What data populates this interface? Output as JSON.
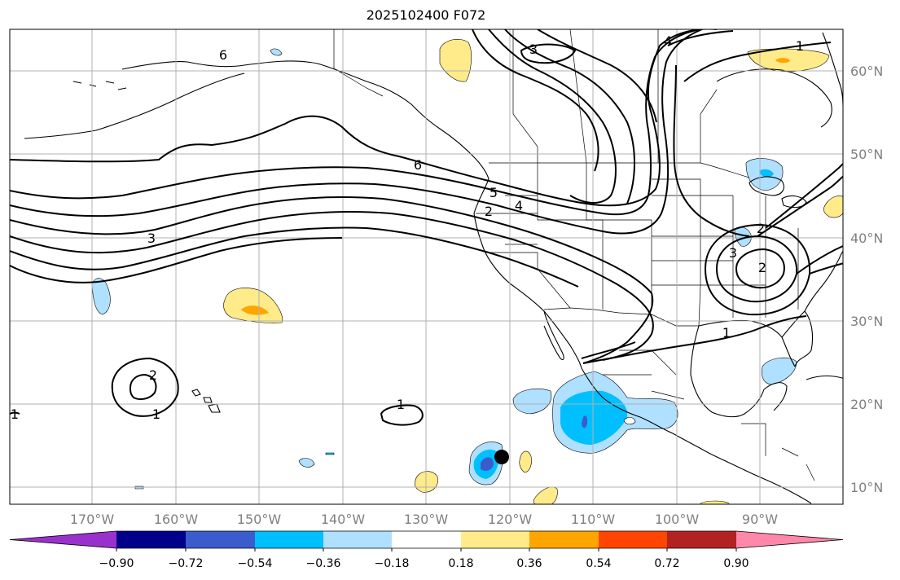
{
  "title": "2025102400 F072",
  "lon_labels": [
    "170°W",
    "160°W",
    "150°W",
    "140°W",
    "130°W",
    "120°W",
    "110°W",
    "100°W",
    "90°W"
  ],
  "lat_labels": [
    "60°N",
    "50°N",
    "40°N",
    "30°N",
    "20°N",
    "10°N"
  ],
  "contour_labels": [
    "6",
    "6",
    "5",
    "4",
    "4",
    "3",
    "3",
    "3",
    "2",
    "2",
    "2",
    "2",
    "1",
    "1",
    "1",
    "1",
    "1"
  ],
  "colorbar": {
    "tick_labels": [
      "−0.90",
      "−0.72",
      "−0.54",
      "−0.36",
      "−0.18",
      "0.18",
      "0.36",
      "0.54",
      "0.72",
      "0.90"
    ],
    "colors": [
      "#9932cc",
      "#00008b",
      "#3a5ccd",
      "#00bfff",
      "#b0e0ff",
      "#ffffff",
      "#ffeb8a",
      "#ffa500",
      "#ff4500",
      "#b22222",
      "#ff88aa"
    ]
  },
  "colors": {
    "land_outline": "#000000",
    "grid": "#b0b0b0",
    "axis_label": "#808080",
    "storm_marker": "#000000"
  }
}
